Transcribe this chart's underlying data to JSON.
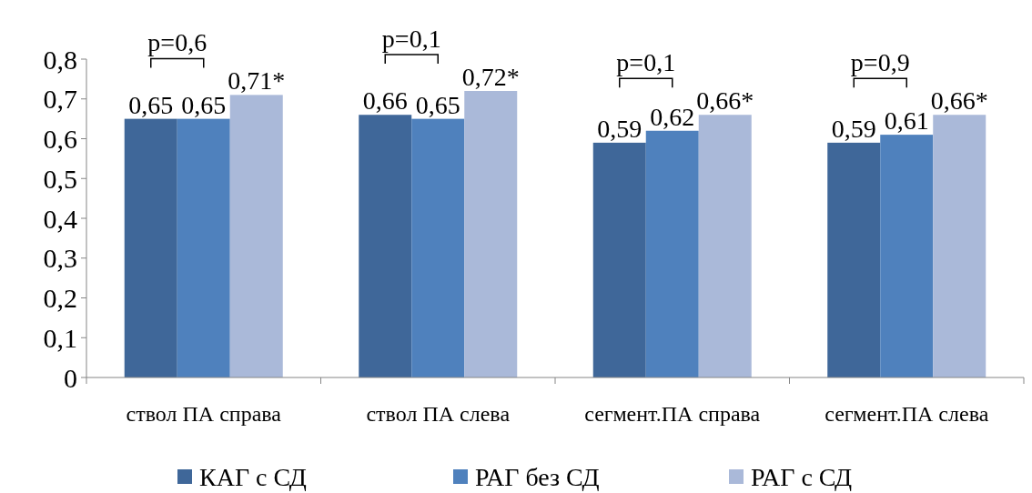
{
  "chart_data": {
    "type": "bar",
    "categories": [
      "ствол ПА справа",
      "ствол ПА слева",
      "сегмент.ПА справа",
      "сегмент.ПА слева"
    ],
    "series": [
      {
        "name": "КАГ с СД",
        "color": "#3f6799",
        "values": [
          0.65,
          0.66,
          0.59,
          0.59
        ],
        "value_labels": [
          "0,65",
          "0,66",
          "0,59",
          "0,59"
        ]
      },
      {
        "name": "РАГ без СД",
        "color": "#4f81bd",
        "values": [
          0.65,
          0.65,
          0.62,
          0.61
        ],
        "value_labels": [
          "0,65",
          "0,65",
          "0,62",
          "0,61"
        ]
      },
      {
        "name": "РАГ с СД",
        "color": "#aab9d9",
        "values": [
          0.71,
          0.72,
          0.66,
          0.66
        ],
        "value_labels": [
          "0,71*",
          "0,72*",
          "0,66*",
          "0,66*"
        ]
      }
    ],
    "ylim": [
      0,
      0.8
    ],
    "yticks": [
      {
        "value": 0,
        "label": "0"
      },
      {
        "value": 0.1,
        "label": "0,1"
      },
      {
        "value": 0.2,
        "label": "0,2"
      },
      {
        "value": 0.3,
        "label": "0,3"
      },
      {
        "value": 0.4,
        "label": "0,4"
      },
      {
        "value": 0.5,
        "label": "0,5"
      },
      {
        "value": 0.6,
        "label": "0,6"
      },
      {
        "value": 0.7,
        "label": "0,7"
      },
      {
        "value": 0.8,
        "label": "0,8"
      }
    ],
    "annotations": [
      "p=0,6",
      "p=0,1",
      "p=0,1",
      "p=0,9"
    ],
    "grid": false,
    "legend": "bottom"
  }
}
